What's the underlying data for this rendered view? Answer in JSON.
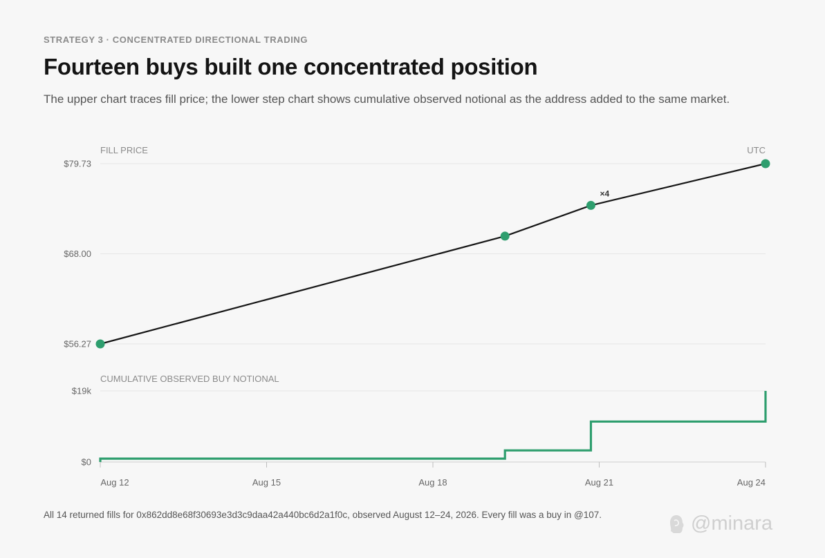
{
  "eyebrow": "STRATEGY 3 · CONCENTRATED DIRECTIONAL TRADING",
  "title": "Fourteen buys built one concentrated position",
  "subtitle": "The upper chart traces fill price; the lower step chart shows cumulative observed notional as the address added to the same market.",
  "footnote": "All 14 returned fills for 0x862dd8e68f30693e3d3c9daa42a440bc6d2a1f0c, observed August 12–24, 2026. Every fill was a buy in @107.",
  "brand": {
    "text": "@minara",
    "logo_icon": "minara-logo-icon"
  },
  "colors": {
    "accent": "#2e9e6e",
    "line": "#161616",
    "grid": "#e6e6e6",
    "muted": "#8a8a8a"
  },
  "chart_data": [
    {
      "type": "line",
      "panel_label": "FILL PRICE",
      "corner_label": "UTC",
      "y_ticks": [
        {
          "value": 79.73,
          "label": "$79.73"
        },
        {
          "value": 68.0,
          "label": "$68.00"
        },
        {
          "value": 56.27,
          "label": "$56.27"
        }
      ],
      "ylim": [
        56.27,
        79.73
      ],
      "xlim": [
        12,
        24
      ],
      "points": [
        {
          "x": 12.0,
          "y": 56.27,
          "label": ""
        },
        {
          "x": 19.3,
          "y": 70.3,
          "label": ""
        },
        {
          "x": 20.85,
          "y": 74.3,
          "label": "×4"
        },
        {
          "x": 24.0,
          "y": 79.73,
          "label": ""
        }
      ]
    },
    {
      "type": "line",
      "step": true,
      "panel_label": "CUMULATIVE OBSERVED BUY NOTIONAL",
      "y_ticks": [
        {
          "value": 19000,
          "label": "$19k"
        },
        {
          "value": 0,
          "label": "$0"
        }
      ],
      "ylim": [
        0,
        19000
      ],
      "xlim": [
        12,
        24
      ],
      "x_ticks": [
        {
          "value": 12,
          "label": "Aug 12"
        },
        {
          "value": 15,
          "label": "Aug 15"
        },
        {
          "value": 18,
          "label": "Aug 18"
        },
        {
          "value": 21,
          "label": "Aug 21"
        },
        {
          "value": 24,
          "label": "Aug 24"
        }
      ],
      "steps": [
        {
          "x": 12.0,
          "y": 900
        },
        {
          "x": 19.3,
          "y": 3100
        },
        {
          "x": 20.85,
          "y": 10800
        },
        {
          "x": 24.0,
          "y": 19000
        }
      ]
    }
  ]
}
